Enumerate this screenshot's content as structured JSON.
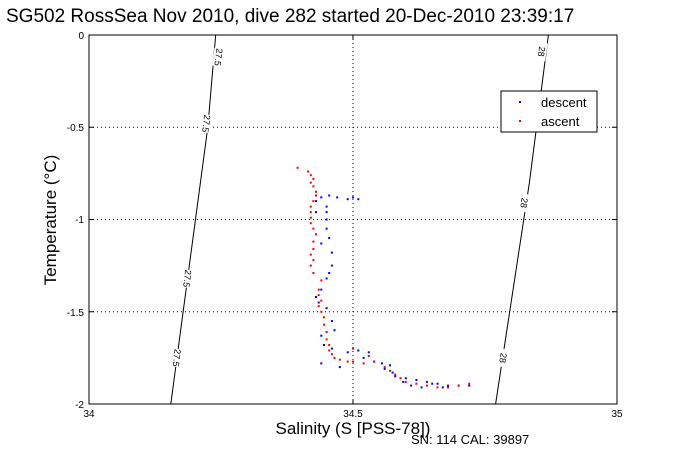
{
  "chart_data": {
    "type": "scatter",
    "title": "SG502 RossSea Nov 2010, dive 282 started 20-Dec-2010 23:39:17",
    "xlabel": "Salinity (S [PSS-78])",
    "ylabel": "Temperature (°C)",
    "xlim": [
      34,
      35
    ],
    "ylim": [
      -2,
      0
    ],
    "xticks": [
      "34",
      "34.5",
      "35"
    ],
    "yticks": [
      "0",
      "-0.5",
      "-1",
      "-1.5",
      "-2"
    ],
    "grid": "dotted",
    "legend_position": "top-right",
    "footer_text": "SN: 114  CAL: 39897",
    "colors": {
      "descent": "#0000ff",
      "ascent": "#ff0000",
      "contour": "#000000"
    },
    "contours": [
      {
        "label": "27.5",
        "points": [
          [
            34.155,
            -2.0
          ],
          [
            34.225,
            -0.5
          ],
          [
            34.24,
            0.0
          ]
        ],
        "label_positions": [
          [
            34.166,
            -1.75
          ],
          [
            34.186,
            -1.32
          ],
          [
            34.222,
            -0.48
          ],
          [
            34.245,
            -0.12
          ]
        ]
      },
      {
        "label": "28",
        "points": [
          [
            34.77,
            -2.0
          ],
          [
            34.834,
            -0.8
          ],
          [
            34.87,
            0.0
          ]
        ],
        "label_positions": [
          [
            34.784,
            -1.75
          ],
          [
            34.824,
            -0.91
          ],
          [
            34.857,
            -0.09
          ]
        ]
      }
    ],
    "series": [
      {
        "name": "descent",
        "points": [
          [
            34.43,
            -0.9
          ],
          [
            34.44,
            -0.88
          ],
          [
            34.455,
            -0.87
          ],
          [
            34.47,
            -0.88
          ],
          [
            34.49,
            -0.89
          ],
          [
            34.5,
            -0.88
          ],
          [
            34.51,
            -0.89
          ],
          [
            34.45,
            -0.93
          ],
          [
            34.45,
            -0.96
          ],
          [
            34.45,
            -1.0
          ],
          [
            34.45,
            -1.05
          ],
          [
            34.455,
            -1.1
          ],
          [
            34.44,
            -1.13
          ],
          [
            34.43,
            -0.96
          ],
          [
            34.46,
            -1.18
          ],
          [
            34.46,
            -1.25
          ],
          [
            34.455,
            -1.29
          ],
          [
            34.45,
            -1.32
          ],
          [
            34.44,
            -1.38
          ],
          [
            34.43,
            -1.42
          ],
          [
            34.435,
            -1.45
          ],
          [
            34.45,
            -1.48
          ],
          [
            34.46,
            -1.55
          ],
          [
            34.465,
            -1.6
          ],
          [
            34.44,
            -1.63
          ],
          [
            34.445,
            -1.68
          ],
          [
            34.46,
            -1.7
          ],
          [
            34.49,
            -1.72
          ],
          [
            34.51,
            -1.71
          ],
          [
            34.53,
            -1.72
          ],
          [
            34.52,
            -1.75
          ],
          [
            34.54,
            -1.77
          ],
          [
            34.555,
            -1.78
          ],
          [
            34.57,
            -1.79
          ],
          [
            34.56,
            -1.81
          ],
          [
            34.575,
            -1.83
          ],
          [
            34.58,
            -1.85
          ],
          [
            34.6,
            -1.86
          ],
          [
            34.62,
            -1.87
          ],
          [
            34.64,
            -1.88
          ],
          [
            34.66,
            -1.89
          ],
          [
            34.68,
            -1.9
          ],
          [
            34.7,
            -1.9
          ],
          [
            34.72,
            -1.9
          ],
          [
            34.595,
            -1.88
          ],
          [
            34.61,
            -1.9
          ],
          [
            34.63,
            -1.91
          ],
          [
            34.65,
            -1.89
          ],
          [
            34.67,
            -1.91
          ],
          [
            34.44,
            -1.78
          ],
          [
            34.475,
            -1.8
          ]
        ]
      },
      {
        "name": "ascent",
        "points": [
          [
            34.395,
            -0.72
          ],
          [
            34.415,
            -0.74
          ],
          [
            34.42,
            -0.76
          ],
          [
            34.425,
            -0.78
          ],
          [
            34.425,
            -0.82
          ],
          [
            34.43,
            -0.85
          ],
          [
            34.43,
            -0.87
          ],
          [
            34.425,
            -0.9
          ],
          [
            34.42,
            -0.93
          ],
          [
            34.42,
            -0.96
          ],
          [
            34.42,
            -0.99
          ],
          [
            34.42,
            -1.02
          ],
          [
            34.425,
            -1.05
          ],
          [
            34.43,
            -1.08
          ],
          [
            34.425,
            -1.12
          ],
          [
            34.425,
            -1.16
          ],
          [
            34.42,
            -1.19
          ],
          [
            34.425,
            -1.22
          ],
          [
            34.42,
            -1.25
          ],
          [
            34.425,
            -1.29
          ],
          [
            34.44,
            -1.33
          ],
          [
            34.435,
            -1.38
          ],
          [
            34.435,
            -1.41
          ],
          [
            34.44,
            -1.44
          ],
          [
            34.435,
            -1.47
          ],
          [
            34.44,
            -1.5
          ],
          [
            34.445,
            -1.53
          ],
          [
            34.445,
            -1.57
          ],
          [
            34.45,
            -1.61
          ],
          [
            34.45,
            -1.65
          ],
          [
            34.455,
            -1.68
          ],
          [
            34.455,
            -1.71
          ],
          [
            34.46,
            -1.73
          ],
          [
            34.465,
            -1.75
          ],
          [
            34.475,
            -1.76
          ],
          [
            34.49,
            -1.77
          ],
          [
            34.5,
            -1.77
          ],
          [
            34.52,
            -1.78
          ],
          [
            34.54,
            -1.77
          ],
          [
            34.56,
            -1.8
          ],
          [
            34.57,
            -1.82
          ],
          [
            34.58,
            -1.84
          ],
          [
            34.59,
            -1.86
          ],
          [
            34.6,
            -1.88
          ],
          [
            34.62,
            -1.89
          ],
          [
            34.64,
            -1.9
          ],
          [
            34.66,
            -1.91
          ],
          [
            34.68,
            -1.91
          ],
          [
            34.7,
            -1.9
          ],
          [
            34.72,
            -1.89
          ],
          [
            34.42,
            -0.8
          ],
          [
            34.5,
            -1.7
          ],
          [
            34.53,
            -1.74
          ]
        ]
      }
    ]
  }
}
